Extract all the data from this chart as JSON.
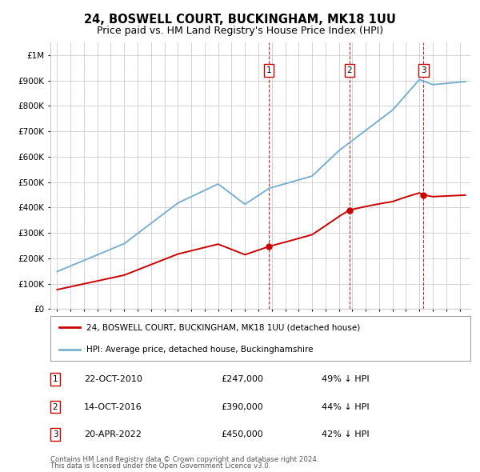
{
  "title": "24, BOSWELL COURT, BUCKINGHAM, MK18 1UU",
  "subtitle": "Price paid vs. HM Land Registry's House Price Index (HPI)",
  "legend_label_red": "24, BOSWELL COURT, BUCKINGHAM, MK18 1UU (detached house)",
  "legend_label_blue": "HPI: Average price, detached house, Buckinghamshire",
  "transactions": [
    {
      "label": "1",
      "date": "22-OCT-2010",
      "price": 247000,
      "pct": "49% ↓ HPI",
      "year": 2010.79
    },
    {
      "label": "2",
      "date": "14-OCT-2016",
      "price": 390000,
      "pct": "44% ↓ HPI",
      "year": 2016.79
    },
    {
      "label": "3",
      "date": "20-APR-2022",
      "price": 450000,
      "pct": "42% ↓ HPI",
      "year": 2022.3
    }
  ],
  "footer_line1": "Contains HM Land Registry data © Crown copyright and database right 2024.",
  "footer_line2": "This data is licensed under the Open Government Licence v3.0.",
  "red_color": "#cc0000",
  "blue_color": "#7aafd4",
  "background_color": "#ffffff",
  "grid_color": "#cccccc",
  "ylim_max": 1050000,
  "xmin": 1994.5,
  "xmax": 2025.8
}
